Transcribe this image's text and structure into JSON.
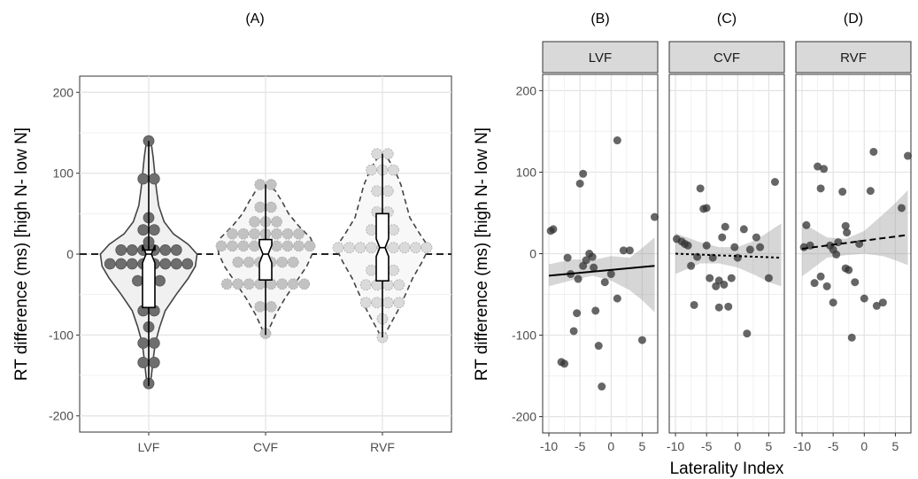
{
  "chart_data": [
    {
      "panel_label": "(A)",
      "type": "violin",
      "ylabel": "RT difference (ms) [high N- low N]",
      "ylim": [
        -220,
        220
      ],
      "yticks": [
        -200,
        -100,
        0,
        100,
        200
      ],
      "categories": [
        "LVF",
        "CVF",
        "RVF"
      ],
      "reference_line": 0,
      "grid": true,
      "groups": [
        {
          "name": "LVF",
          "fill": "#f0f0f0",
          "point_color": "#6e6e6e",
          "box": {
            "q1": -66,
            "median": 0,
            "q3": 5,
            "min": -163,
            "max": 140
          },
          "violin_profile": [
            [
              -163,
              0.02
            ],
            [
              -150,
              0.05
            ],
            [
              -130,
              0.08
            ],
            [
              -110,
              0.12
            ],
            [
              -90,
              0.2
            ],
            [
              -70,
              0.3
            ],
            [
              -50,
              0.5
            ],
            [
              -30,
              0.72
            ],
            [
              -15,
              0.85
            ],
            [
              0,
              0.88
            ],
            [
              12,
              0.72
            ],
            [
              25,
              0.45
            ],
            [
              40,
              0.28
            ],
            [
              60,
              0.18
            ],
            [
              80,
              0.14
            ],
            [
              100,
              0.11
            ],
            [
              120,
              0.08
            ],
            [
              135,
              0.05
            ],
            [
              140,
              0.02
            ]
          ],
          "points": [
            {
              "y": 140,
              "n": 1
            },
            {
              "y": 93,
              "n": 2
            },
            {
              "y": 45,
              "n": 1
            },
            {
              "y": 30,
              "n": 2
            },
            {
              "y": 15,
              "n": 1
            },
            {
              "y": 5,
              "n": 6
            },
            {
              "y": -12,
              "n": 8
            },
            {
              "y": -33,
              "n": 3
            },
            {
              "y": -70,
              "n": 2
            },
            {
              "y": -90,
              "n": 1
            },
            {
              "y": -110,
              "n": 2
            },
            {
              "y": -134,
              "n": 2
            },
            {
              "y": -160,
              "n": 1
            }
          ]
        },
        {
          "name": "CVF",
          "fill": "#f6f6f6",
          "point_color": "#c2c2c2",
          "box": {
            "q1": -32,
            "median": 0,
            "q3": 18,
            "min": -100,
            "max": 86
          },
          "violin_profile": [
            [
              -100,
              0.02
            ],
            [
              -90,
              0.08
            ],
            [
              -75,
              0.18
            ],
            [
              -55,
              0.35
            ],
            [
              -35,
              0.55
            ],
            [
              -15,
              0.75
            ],
            [
              0,
              0.85
            ],
            [
              10,
              0.88
            ],
            [
              20,
              0.82
            ],
            [
              35,
              0.6
            ],
            [
              50,
              0.42
            ],
            [
              65,
              0.3
            ],
            [
              78,
              0.18
            ],
            [
              86,
              0.05
            ]
          ],
          "points": [
            {
              "y": 86,
              "n": 2
            },
            {
              "y": 58,
              "n": 2
            },
            {
              "y": 40,
              "n": 3
            },
            {
              "y": 25,
              "n": 7
            },
            {
              "y": 10,
              "n": 9
            },
            {
              "y": -10,
              "n": 6
            },
            {
              "y": -37,
              "n": 8
            },
            {
              "y": -65,
              "n": 2
            },
            {
              "y": -98,
              "n": 1
            }
          ]
        },
        {
          "name": "RVF",
          "fill": "#f8f8f8",
          "point_color": "#dadada",
          "box": {
            "q1": -33,
            "median": 8,
            "q3": 50,
            "min": -103,
            "max": 124
          },
          "violin_profile": [
            [
              -103,
              0.02
            ],
            [
              -90,
              0.12
            ],
            [
              -70,
              0.28
            ],
            [
              -50,
              0.42
            ],
            [
              -30,
              0.55
            ],
            [
              -10,
              0.72
            ],
            [
              8,
              0.85
            ],
            [
              25,
              0.68
            ],
            [
              45,
              0.5
            ],
            [
              65,
              0.42
            ],
            [
              85,
              0.34
            ],
            [
              105,
              0.22
            ],
            [
              120,
              0.08
            ],
            [
              124,
              0.03
            ]
          ],
          "points": [
            {
              "y": 124,
              "n": 2
            },
            {
              "y": 104,
              "n": 3
            },
            {
              "y": 78,
              "n": 2
            },
            {
              "y": 52,
              "n": 2
            },
            {
              "y": 30,
              "n": 3
            },
            {
              "y": 8,
              "n": 9
            },
            {
              "y": -20,
              "n": 3
            },
            {
              "y": -38,
              "n": 4
            },
            {
              "y": -60,
              "n": 4
            },
            {
              "y": -80,
              "n": 1
            },
            {
              "y": -103,
              "n": 1
            }
          ]
        }
      ]
    },
    {
      "type": "scatter",
      "ylabel": "RT difference (ms) [high N- low N]",
      "xlabel": "Laterality Index",
      "ylim": [
        -220,
        220
      ],
      "xlim": [
        -11,
        7.5
      ],
      "yticks": [
        -200,
        -100,
        0,
        100,
        200
      ],
      "xticks": [
        -10,
        -5,
        0,
        5
      ],
      "grid": true,
      "panels": [
        {
          "panel_label": "(B)",
          "strip": "LVF",
          "line_style": "solid",
          "fit": {
            "x1": -10,
            "y1": -27,
            "x2": 7,
            "y2": -15
          },
          "band": [
            [
              -10,
              -40,
              -13
            ],
            [
              -6,
              -32,
              -7
            ],
            [
              -3,
              -27,
              -8
            ],
            [
              0,
              -33,
              -3
            ],
            [
              3,
              -45,
              -5
            ],
            [
              5,
              -57,
              7
            ],
            [
              7,
              -72,
              20
            ]
          ],
          "points": [
            [
              -9.7,
              28
            ],
            [
              -9.3,
              30
            ],
            [
              -8,
              -133
            ],
            [
              -7.5,
              -135
            ],
            [
              -7,
              -5
            ],
            [
              -6,
              -95
            ],
            [
              -5.5,
              -73
            ],
            [
              -5,
              86
            ],
            [
              -4.5,
              98
            ],
            [
              -4.5,
              -15
            ],
            [
              -4,
              -8
            ],
            [
              -3.5,
              0
            ],
            [
              -3,
              -4
            ],
            [
              -2.5,
              -70
            ],
            [
              -2,
              -113
            ],
            [
              -1.5,
              -163
            ],
            [
              -1,
              -35
            ],
            [
              0,
              -25
            ],
            [
              1,
              139
            ],
            [
              1,
              -55
            ],
            [
              2,
              4
            ],
            [
              3,
              4
            ],
            [
              5,
              -106
            ],
            [
              7,
              45
            ],
            [
              -6.5,
              -25
            ],
            [
              -5.3,
              -31
            ],
            [
              -2.8,
              -17
            ]
          ]
        },
        {
          "panel_label": "(C)",
          "strip": "CVF",
          "line_style": "dotted",
          "fit": {
            "x1": -10,
            "y1": 0,
            "x2": 7,
            "y2": -5
          },
          "band": [
            [
              -10,
              -25,
              25
            ],
            [
              -6,
              -12,
              14
            ],
            [
              -3,
              -12,
              8
            ],
            [
              0,
              -17,
              8
            ],
            [
              3,
              -27,
              17
            ],
            [
              5,
              -35,
              27
            ],
            [
              7,
              -40,
              37
            ]
          ],
          "points": [
            [
              -9.8,
              18
            ],
            [
              -9,
              15
            ],
            [
              -8,
              10
            ],
            [
              -7.5,
              -15
            ],
            [
              -7,
              -63
            ],
            [
              -6,
              80
            ],
            [
              -5.5,
              55
            ],
            [
              -5,
              56
            ],
            [
              -5,
              10
            ],
            [
              -4.5,
              -30
            ],
            [
              -4,
              -5
            ],
            [
              -3.5,
              -40
            ],
            [
              -3,
              -66
            ],
            [
              -3,
              -33
            ],
            [
              -2.5,
              20
            ],
            [
              -2,
              33
            ],
            [
              -1.5,
              -65
            ],
            [
              -1,
              -30
            ],
            [
              0,
              -5
            ],
            [
              1,
              30
            ],
            [
              1.5,
              -98
            ],
            [
              2,
              5
            ],
            [
              3,
              20
            ],
            [
              5,
              -30
            ],
            [
              6,
              88
            ],
            [
              -8.5,
              12
            ],
            [
              -6.5,
              -4
            ],
            [
              -2.2,
              -38
            ],
            [
              -0.5,
              8
            ],
            [
              3.6,
              8
            ]
          ]
        },
        {
          "panel_label": "(D)",
          "strip": "RVF",
          "line_style": "dashed",
          "fit": {
            "x1": -10,
            "y1": 6,
            "x2": 7,
            "y2": 23
          },
          "band": [
            [
              -10,
              -28,
              38
            ],
            [
              -6,
              -5,
              20
            ],
            [
              -3,
              -2,
              18
            ],
            [
              0,
              0,
              28
            ],
            [
              3,
              -3,
              48
            ],
            [
              5,
              -8,
              62
            ],
            [
              7,
              -14,
              78
            ]
          ],
          "points": [
            [
              -9.7,
              8
            ],
            [
              -9.3,
              35
            ],
            [
              -8,
              -36
            ],
            [
              -7.5,
              107
            ],
            [
              -7,
              80
            ],
            [
              -7,
              -28
            ],
            [
              -6.5,
              104
            ],
            [
              -6,
              -40
            ],
            [
              -5.5,
              10
            ],
            [
              -5,
              -60
            ],
            [
              -5,
              5
            ],
            [
              -4.5,
              -1
            ],
            [
              -3.5,
              76
            ],
            [
              -3,
              34
            ],
            [
              -3,
              -18
            ],
            [
              -2.5,
              -20
            ],
            [
              -2,
              -103
            ],
            [
              -1.5,
              -35
            ],
            [
              0,
              -55
            ],
            [
              1,
              77
            ],
            [
              1.5,
              125
            ],
            [
              2,
              -64
            ],
            [
              3,
              -60
            ],
            [
              6,
              56
            ],
            [
              7,
              120
            ],
            [
              -8.7,
              10
            ],
            [
              -4.2,
              14
            ],
            [
              -2.8,
              26
            ],
            [
              -0.8,
              12
            ]
          ]
        }
      ]
    }
  ]
}
